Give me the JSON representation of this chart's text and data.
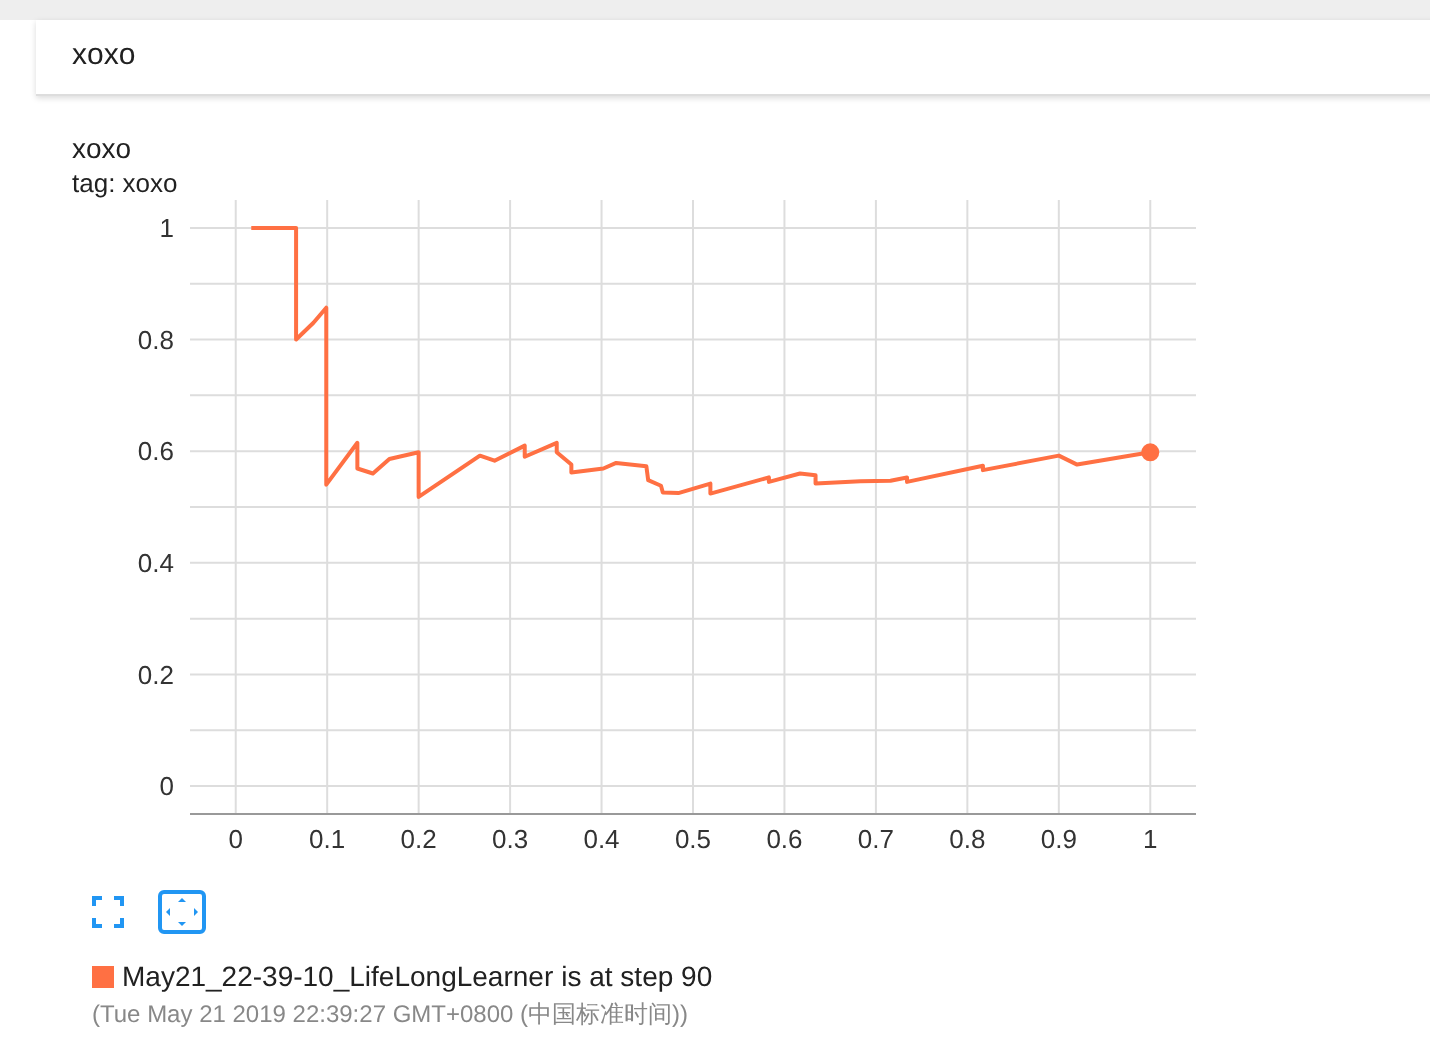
{
  "chart_data": {
    "type": "line",
    "title": "xoxo",
    "subtitle": "tag: xoxo",
    "x": [
      0.017,
      0.066,
      0.066,
      0.085,
      0.099,
      0.099,
      0.133,
      0.133,
      0.15,
      0.168,
      0.2,
      0.2,
      0.267,
      0.283,
      0.316,
      0.316,
      0.351,
      0.351,
      0.367,
      0.367,
      0.402,
      0.416,
      0.449,
      0.451,
      0.465,
      0.467,
      0.484,
      0.519,
      0.519,
      0.583,
      0.583,
      0.617,
      0.634,
      0.634,
      0.683,
      0.716,
      0.734,
      0.734,
      0.817,
      0.817,
      0.9,
      0.92,
      1.0
    ],
    "series": [
      {
        "name": "May21_22-39-10_LifeLongLearner",
        "color": "#ff7043",
        "values": [
          1.0,
          1.0,
          0.8,
          0.83,
          0.857,
          0.54,
          0.615,
          0.569,
          0.56,
          0.586,
          0.598,
          0.518,
          0.592,
          0.583,
          0.61,
          0.59,
          0.615,
          0.598,
          0.576,
          0.562,
          0.569,
          0.579,
          0.573,
          0.548,
          0.538,
          0.526,
          0.525,
          0.542,
          0.524,
          0.553,
          0.545,
          0.56,
          0.557,
          0.542,
          0.546,
          0.547,
          0.553,
          0.545,
          0.574,
          0.566,
          0.592,
          0.576,
          0.598
        ]
      }
    ],
    "xlim": [
      -0.05,
      1.05
    ],
    "ylim": [
      -0.05,
      1.05
    ],
    "xticks": [
      0,
      0.1,
      0.2,
      0.3,
      0.4,
      0.5,
      0.6,
      0.7,
      0.8,
      0.9,
      1
    ],
    "yticks": [
      0,
      {
        "value": 0.1,
        "label": null
      },
      0.2,
      {
        "value": 0.3,
        "label": null
      },
      0.4,
      {
        "value": 0.5,
        "label": null
      },
      0.6,
      {
        "value": 0.7,
        "label": null
      },
      0.8,
      {
        "value": 0.9,
        "label": null
      },
      1
    ],
    "grid": true,
    "marker": "none",
    "line_style": "solid",
    "legend": "bottom",
    "annotations": [
      "is at step 90",
      "(Tue May 21 2019 22:39:27 GMT+0800 (中国标准时间))"
    ]
  }
}
